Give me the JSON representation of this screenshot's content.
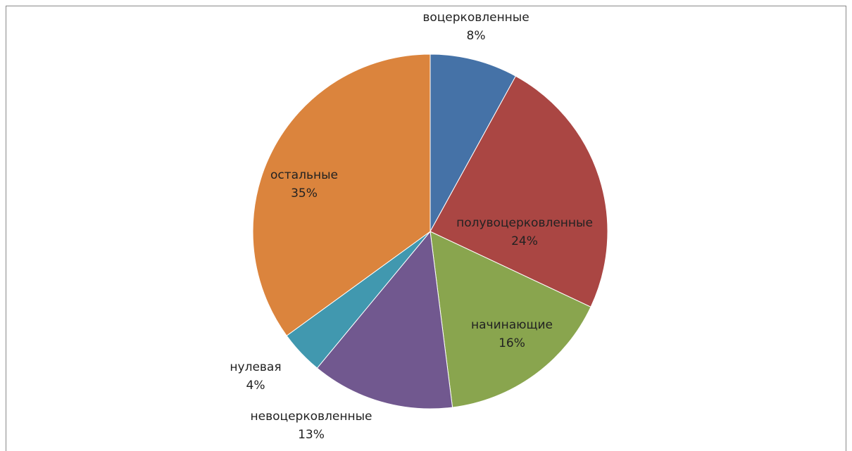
{
  "chart_data": {
    "type": "pie",
    "categories": [
      "воцерковленные",
      "полувоцерковленные",
      "начинающие",
      "невоцерковленные",
      "нулевая",
      "остальные"
    ],
    "values": [
      8,
      24,
      16,
      13,
      4,
      35
    ],
    "value_labels": [
      "8%",
      "24%",
      "16%",
      "13%",
      "4%",
      "35%"
    ],
    "colors": [
      "#4572a7",
      "#aa4643",
      "#89a54e",
      "#71588f",
      "#4198af",
      "#db843d"
    ]
  }
}
